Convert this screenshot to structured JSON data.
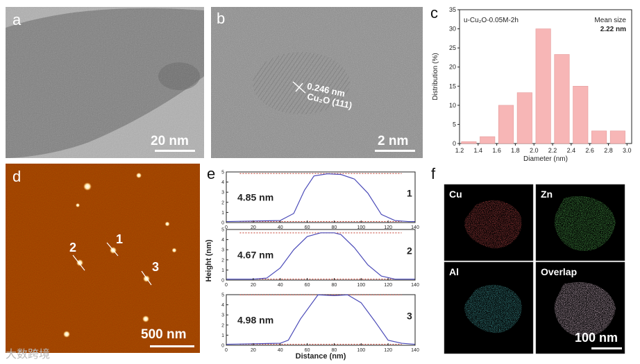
{
  "panels": {
    "a": {
      "label": "a",
      "scale_text": "20 nm"
    },
    "b": {
      "label": "b",
      "scale_text": "2 nm",
      "annotation_spacing": "0.246 nm",
      "annotation_plane": "Cu₂O (111)"
    },
    "c": {
      "label": "c"
    },
    "d": {
      "label": "d",
      "scale_text": "500 nm",
      "particle_labels": [
        "1",
        "2",
        "3"
      ]
    },
    "e": {
      "label": "e"
    },
    "f": {
      "label": "f",
      "scale_text": "100 nm",
      "maps": [
        "Cu",
        "Zn",
        "Al",
        "Overlap"
      ]
    }
  },
  "colors": {
    "afm": "#9a3a00",
    "bar": "#f7b6b6",
    "profile_line": "#4a4ab8",
    "ref_line": "#c0392b",
    "cu": "#ff2020",
    "zn": "#28d428",
    "al": "#20d0d0"
  },
  "watermark": "大数跨境",
  "chart_data": [
    {
      "type": "bar",
      "title": "u-Cu₂O-0.05M-2h",
      "annotation": [
        "Mean size",
        "2.22 nm"
      ],
      "xlabel": "Diameter (nm)",
      "ylabel": "Distribution (%)",
      "x": [
        1.3,
        1.5,
        1.7,
        1.9,
        2.1,
        2.3,
        2.5,
        2.7,
        2.9
      ],
      "values": [
        0.5,
        1.8,
        10,
        13.3,
        30,
        23.3,
        15,
        3.3,
        3.3
      ],
      "xlim": [
        1.2,
        3.05
      ],
      "ylim": [
        0,
        35
      ],
      "xticks": [
        "1.2",
        "1.4",
        "1.6",
        "1.8",
        "2.0",
        "2.2",
        "2.4",
        "2.6",
        "2.8",
        "3.0"
      ],
      "yticks": [
        "0",
        "5",
        "10",
        "15",
        "20",
        "25",
        "30",
        "35"
      ]
    },
    {
      "type": "line",
      "xlabel": "Distance (nm)",
      "ylabel": "Height (nm)",
      "xlim": [
        0,
        140
      ],
      "ylim": [
        0,
        5
      ],
      "xticks": [
        "0",
        "20",
        "40",
        "60",
        "80",
        "100",
        "120",
        "140"
      ],
      "yticks": [
        "0",
        "1",
        "2",
        "3",
        "4",
        "5"
      ],
      "series": [
        {
          "name": "1",
          "height_label": "4.85 nm",
          "ref": 4.85,
          "x": [
            0,
            20,
            40,
            50,
            58,
            65,
            75,
            85,
            95,
            105,
            115,
            125,
            135,
            140
          ],
          "y": [
            0.1,
            0.15,
            0.2,
            0.9,
            3.2,
            4.6,
            4.82,
            4.75,
            4.3,
            2.9,
            0.8,
            0.2,
            0.1,
            0.1
          ]
        },
        {
          "name": "2",
          "height_label": "4.67 nm",
          "ref": 4.67,
          "x": [
            0,
            20,
            30,
            40,
            50,
            60,
            70,
            80,
            85,
            95,
            105,
            115,
            125,
            135,
            140
          ],
          "y": [
            0.1,
            0.1,
            0.2,
            1.2,
            3.0,
            4.3,
            4.67,
            4.67,
            4.5,
            3.2,
            1.5,
            0.4,
            0.1,
            0.1,
            0.1
          ]
        },
        {
          "name": "3",
          "height_label": "4.98 nm",
          "ref": 4.98,
          "x": [
            0,
            20,
            40,
            46,
            55,
            68,
            80,
            90,
            100,
            110,
            120,
            130,
            140
          ],
          "y": [
            0.1,
            0.15,
            0.2,
            0.5,
            2.6,
            4.98,
            4.9,
            4.98,
            4.2,
            2.4,
            0.5,
            0.2,
            0.1
          ]
        }
      ]
    }
  ]
}
